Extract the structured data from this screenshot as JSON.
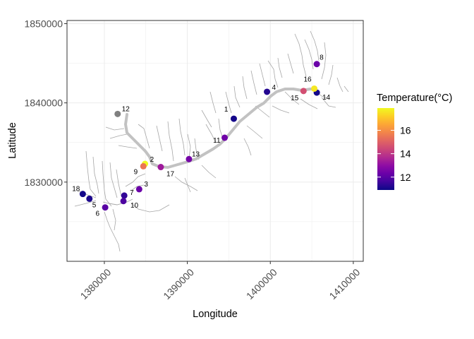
{
  "chart_data": {
    "type": "scatter",
    "xlabel": "Longitude",
    "ylabel": "Latitude",
    "xlim": [
      1375500,
      1411200
    ],
    "ylim": [
      1820000,
      1850400
    ],
    "x_ticks": [
      1380000,
      1390000,
      1400000,
      1410000
    ],
    "x_tick_labels": [
      "1380000",
      "1390000",
      "1400000",
      "1410000"
    ],
    "y_ticks": [
      1830000,
      1840000,
      1850000
    ],
    "y_tick_labels": [
      "1830000",
      "1840000",
      "1850000"
    ],
    "grid": true,
    "legend": {
      "title": "Temperature(°C)",
      "placement": "right",
      "min": 10.9,
      "max": 17.9,
      "breaks": [
        12,
        14,
        16
      ],
      "break_labels": [
        "12",
        "14",
        "16"
      ]
    },
    "points": [
      {
        "label": "1",
        "x": 1395600,
        "y": 1838000,
        "temperature": 11.0
      },
      {
        "label": "2",
        "x": 1384900,
        "y": 1832300,
        "temperature": 17.9
      },
      {
        "label": "3",
        "x": 1384200,
        "y": 1829100,
        "temperature": 12.3
      },
      {
        "label": "4",
        "x": 1399600,
        "y": 1841400,
        "temperature": 11.2
      },
      {
        "label": "5",
        "x": 1378200,
        "y": 1827900,
        "temperature": 11.1
      },
      {
        "label": "6",
        "x": 1380100,
        "y": 1826800,
        "temperature": 12.0
      },
      {
        "label": "7",
        "x": 1382400,
        "y": 1828300,
        "temperature": 11.4
      },
      {
        "label": "8",
        "x": 1405600,
        "y": 1844900,
        "temperature": 12.3
      },
      {
        "label": "9",
        "x": 1384700,
        "y": 1832000,
        "temperature": 15.5
      },
      {
        "label": "10",
        "x": 1382300,
        "y": 1827600,
        "temperature": 11.8
      },
      {
        "label": "11",
        "x": 1394500,
        "y": 1835600,
        "temperature": 12.4
      },
      {
        "label": "12",
        "x": 1381600,
        "y": 1838600,
        "temperature": null
      },
      {
        "label": "13",
        "x": 1390200,
        "y": 1832900,
        "temperature": 12.5
      },
      {
        "label": "14",
        "x": 1405600,
        "y": 1841300,
        "temperature": 11.0
      },
      {
        "label": "15",
        "x": 1404000,
        "y": 1841500,
        "temperature": 14.6
      },
      {
        "label": "16",
        "x": 1405300,
        "y": 1841800,
        "temperature": 17.6
      },
      {
        "label": "17",
        "x": 1386800,
        "y": 1831900,
        "temperature": 13.3
      },
      {
        "label": "18",
        "x": 1377400,
        "y": 1828500,
        "temperature": 11.0
      }
    ]
  }
}
